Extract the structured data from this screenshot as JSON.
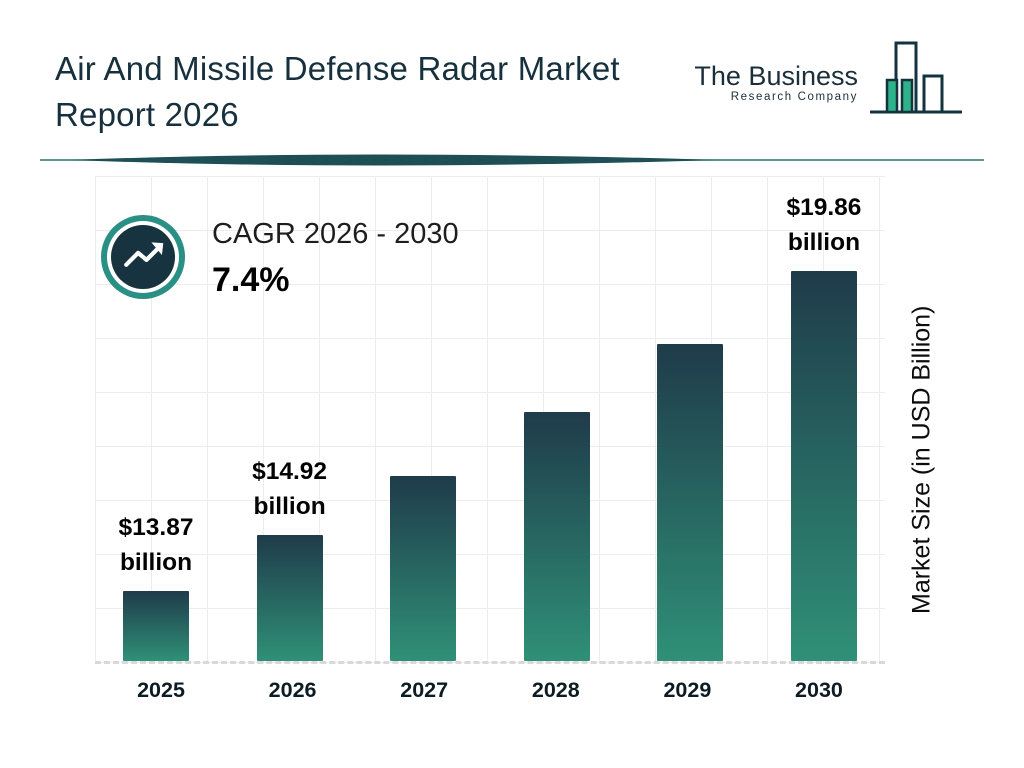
{
  "title": {
    "line1": "Air And Missile Defense Radar Market",
    "line2": "Report 2026"
  },
  "logo": {
    "line1": "The Business",
    "line2": "Research Company"
  },
  "cagr": {
    "label": "CAGR 2026 - 2030",
    "value": "7.4%"
  },
  "chart_data": {
    "type": "bar",
    "title": "Air And Missile Defense Radar Market Report 2026",
    "categories": [
      "2025",
      "2026",
      "2027",
      "2028",
      "2029",
      "2030"
    ],
    "values": [
      13.87,
      14.92,
      16.02,
      17.21,
      18.49,
      19.86
    ],
    "bar_labels": [
      [
        "$13.87",
        "billion"
      ],
      [
        "$14.92",
        "billion"
      ],
      [],
      [],
      [],
      [
        "$19.86",
        "billion"
      ]
    ],
    "xlabel": "",
    "ylabel": "Market Size (in USD Billion)",
    "ylim": [
      12.55,
      19.86
    ],
    "grid": true,
    "legend": "none",
    "colors": {
      "bar_top": "#1f3b4a",
      "bar_bottom": "#2f9077",
      "accent_teal": "#2a8f84",
      "dark_navy": "#17333f",
      "logo_teal": "#2db389"
    }
  }
}
